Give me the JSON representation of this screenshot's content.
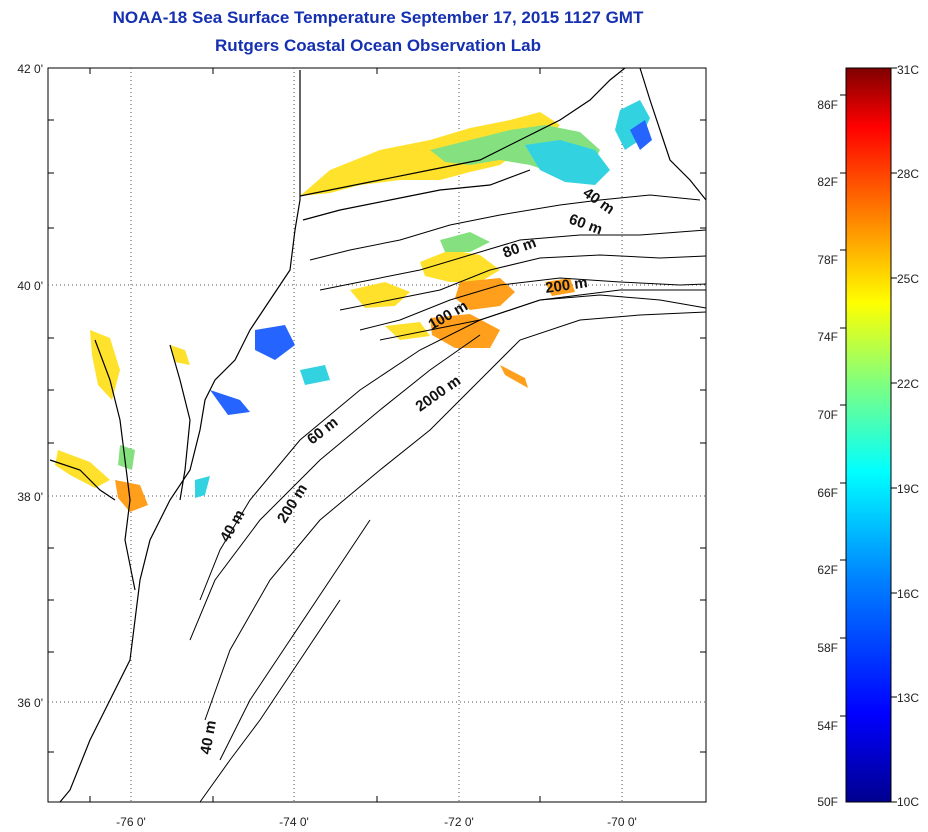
{
  "title": "NOAA-18 Sea Surface Temperature September 17, 2015 1127 GMT",
  "subtitle": "Rutgers Coastal Ocean Observation Lab",
  "axes": {
    "lon_ticks": [
      "-76 0'",
      "-74 0'",
      "-72 0'",
      "-70 0'"
    ],
    "lat_ticks": [
      "42 0'",
      "40 0'",
      "38 0'",
      "36 0'"
    ],
    "lon_range": [
      -77,
      -69
    ],
    "lat_range": [
      35,
      42
    ],
    "grid": "dotted"
  },
  "contour_labels": [
    "40 m",
    "60 m",
    "80 m",
    "200 m",
    "100 m",
    "2000 m",
    "60 m",
    "40 m",
    "200 m",
    "40 m"
  ],
  "colorbar": {
    "fahrenheit": [
      "86F",
      "82F",
      "78F",
      "74F",
      "70F",
      "66F",
      "62F",
      "58F",
      "54F",
      "50F"
    ],
    "celsius": [
      "31C",
      "28C",
      "25C",
      "22C",
      "19C",
      "16C",
      "13C",
      "10C"
    ],
    "colors": [
      "#00008f",
      "#0000ff",
      "#007fff",
      "#00ffff",
      "#7fff7f",
      "#ffff00",
      "#ff7f00",
      "#ff0000",
      "#7f0000"
    ]
  },
  "sst_colors": {
    "cold": "#1a5cff",
    "cool": "#28d0e0",
    "mild": "#7fe07a",
    "warm": "#ffe020",
    "hot": "#ff9a10"
  },
  "land_outline_color": "#000000"
}
